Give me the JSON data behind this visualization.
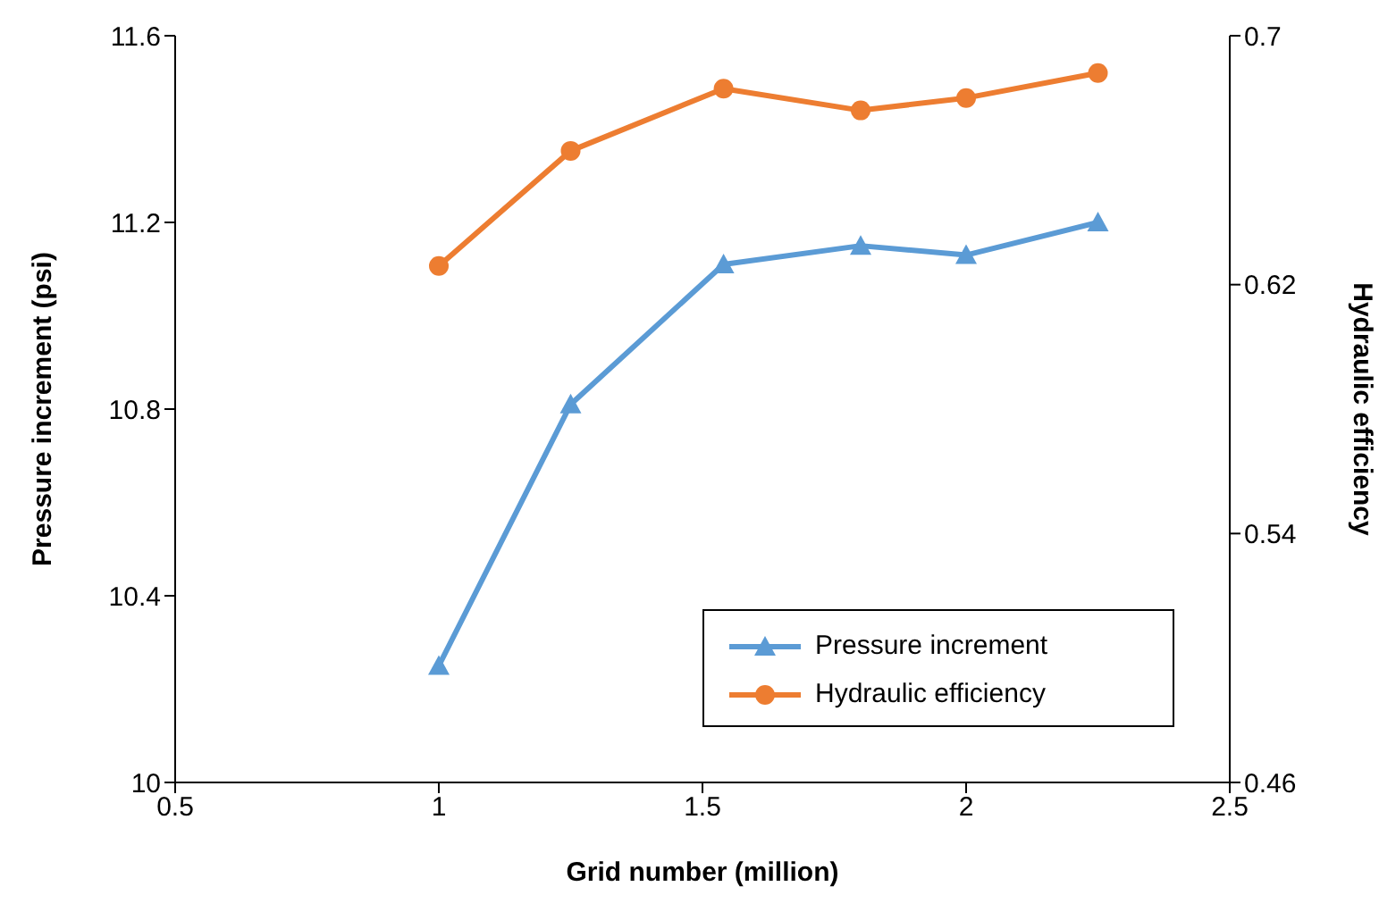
{
  "chart_data": {
    "type": "line",
    "xlabel": "Grid number (million)",
    "ylabel": "Pressure increment (psi)",
    "y2label": "Hydraulic efficiency",
    "x": [
      1,
      1.25,
      1.54,
      1.8,
      2,
      2.25
    ],
    "series": [
      {
        "name": "Pressure increment",
        "color": "#5b9bd5",
        "values": [
          10.25,
          10.81,
          11.11,
          11.15,
          11.13,
          11.2
        ],
        "marker": "triangle"
      },
      {
        "name": "Hydraulic efficiency",
        "color": "#ed7d31",
        "values": [
          0.626,
          0.663,
          0.683,
          0.676,
          0.68,
          0.688
        ],
        "axis": "y2",
        "marker": "circle"
      }
    ],
    "xlim": [
      0.5,
      2.5
    ],
    "xticks": [
      0.5,
      1,
      1.5,
      2,
      2.5
    ],
    "ylim": [
      10,
      11.6
    ],
    "yticks": [
      10,
      10.4,
      10.8,
      11.2,
      11.6
    ],
    "y2lim": [
      0.46,
      0.7
    ],
    "y2ticks": [
      0.46,
      0.54,
      0.62,
      0.7
    ],
    "grid": false,
    "legend": "bottom right",
    "line_style": "solid"
  }
}
